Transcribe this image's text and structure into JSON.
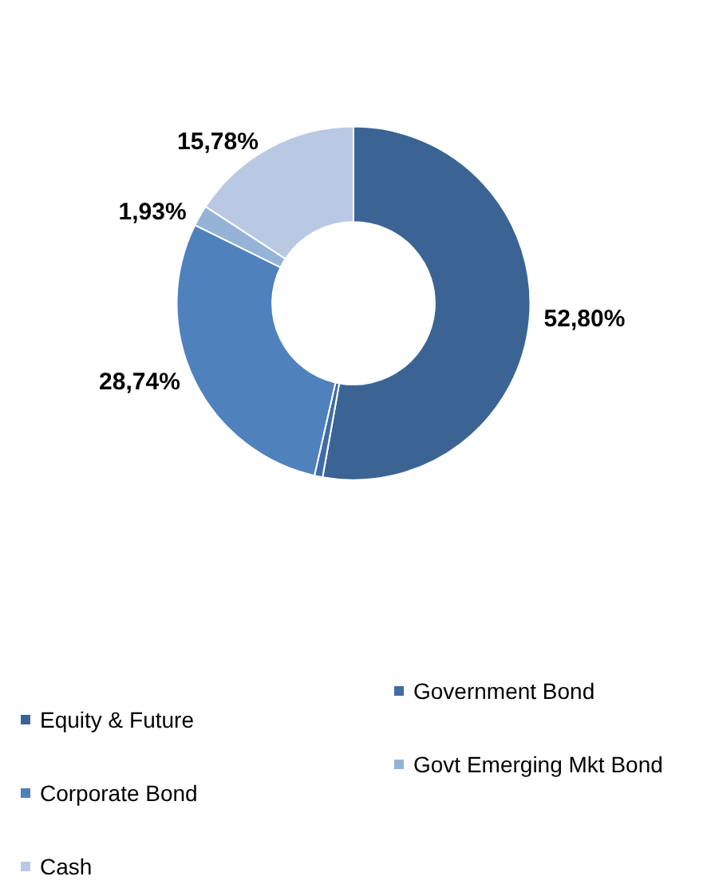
{
  "chart_data": {
    "type": "donut",
    "categories": [
      "Equity & Future",
      "Government Bond",
      "Corporate Bond",
      "Govt Emerging Mkt Bond",
      "Cash"
    ],
    "values": [
      52.8,
      0.75,
      28.74,
      1.93,
      15.78
    ],
    "colors": [
      "#3b6495",
      "#3f6ca6",
      "#4f81bd",
      "#95b3d7",
      "#b9c9e3"
    ],
    "value_labels": [
      "52,80%",
      null,
      "28,74%",
      "1,93%",
      "15,78%"
    ],
    "legend": "bottom"
  }
}
